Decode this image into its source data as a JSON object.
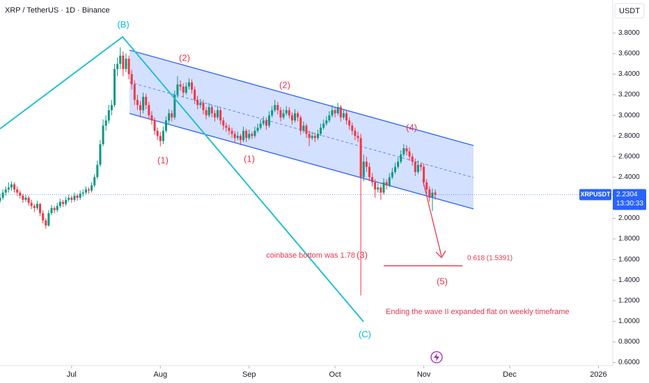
{
  "chart_data": {
    "type": "candlestick",
    "title": "XRP / TetherUS · 1D · Binance",
    "currency": "USDT",
    "symbol": "XRPUSDT",
    "countdown": "13:30:33",
    "up_color": "#089981",
    "down_color": "#f23645",
    "ylim": [
      0.57,
      4.12
    ],
    "yticks": [
      {
        "value": 0.6,
        "label": "0.6000"
      },
      {
        "value": 0.8,
        "label": "0.8000"
      },
      {
        "value": 1.0,
        "label": "1.0000"
      },
      {
        "value": 1.2,
        "label": "1.2000"
      },
      {
        "value": 1.4,
        "label": "1.4000"
      },
      {
        "value": 1.6,
        "label": "1.6000"
      },
      {
        "value": 1.8,
        "label": "1.8000"
      },
      {
        "value": 2.0,
        "label": "2.0000"
      },
      {
        "value": 2.2,
        "label": "2.2000"
      },
      {
        "value": 2.4,
        "label": "2.4000"
      },
      {
        "value": 2.6,
        "label": "2.6000"
      },
      {
        "value": 2.8,
        "label": "2.8000"
      },
      {
        "value": 3.0,
        "label": "3.0000"
      },
      {
        "value": 3.2,
        "label": "3.2000"
      },
      {
        "value": 3.4,
        "label": "3.4000"
      },
      {
        "value": 3.6,
        "label": "3.6000"
      },
      {
        "value": 3.8,
        "label": "3.8000"
      }
    ],
    "xlim": [
      0,
      214
    ],
    "xticks": [
      {
        "value": 25,
        "label": "Jul"
      },
      {
        "value": 56,
        "label": "Aug"
      },
      {
        "value": 87,
        "label": "Sep"
      },
      {
        "value": 117,
        "label": "Oct"
      },
      {
        "value": 148,
        "label": "Nov"
      },
      {
        "value": 178,
        "label": "Dec"
      },
      {
        "value": 209,
        "label": "2026"
      }
    ],
    "ohlc": [
      [
        2.17,
        2.24,
        2.15,
        2.2
      ],
      [
        2.2,
        2.28,
        2.18,
        2.25
      ],
      [
        2.25,
        2.31,
        2.22,
        2.28
      ],
      [
        2.28,
        2.35,
        2.25,
        2.3
      ],
      [
        2.3,
        2.36,
        2.27,
        2.33
      ],
      [
        2.33,
        2.35,
        2.25,
        2.28
      ],
      [
        2.28,
        2.31,
        2.22,
        2.25
      ],
      [
        2.25,
        2.27,
        2.19,
        2.22
      ],
      [
        2.22,
        2.24,
        2.15,
        2.18
      ],
      [
        2.18,
        2.23,
        2.16,
        2.2
      ],
      [
        2.2,
        2.22,
        2.12,
        2.15
      ],
      [
        2.15,
        2.18,
        2.09,
        2.12
      ],
      [
        2.12,
        2.14,
        2.06,
        2.1
      ],
      [
        2.1,
        2.17,
        2.08,
        2.14
      ],
      [
        2.14,
        2.15,
        2.02,
        2.05
      ],
      [
        2.05,
        2.08,
        1.95,
        1.98
      ],
      [
        1.98,
        2.0,
        1.9,
        1.93
      ],
      [
        1.93,
        2.08,
        1.92,
        2.05
      ],
      [
        2.05,
        2.13,
        2.03,
        2.1
      ],
      [
        2.1,
        2.12,
        2.05,
        2.08
      ],
      [
        2.08,
        2.15,
        2.06,
        2.12
      ],
      [
        2.12,
        2.19,
        2.1,
        2.16
      ],
      [
        2.16,
        2.18,
        2.11,
        2.14
      ],
      [
        2.14,
        2.21,
        2.12,
        2.18
      ],
      [
        2.18,
        2.23,
        2.16,
        2.2
      ],
      [
        2.2,
        2.22,
        2.15,
        2.18
      ],
      [
        2.18,
        2.25,
        2.16,
        2.22
      ],
      [
        2.22,
        2.24,
        2.17,
        2.2
      ],
      [
        2.2,
        2.27,
        2.18,
        2.24
      ],
      [
        2.24,
        2.28,
        2.21,
        2.25
      ],
      [
        2.25,
        2.31,
        2.23,
        2.28
      ],
      [
        2.28,
        2.3,
        2.24,
        2.27
      ],
      [
        2.27,
        2.35,
        2.25,
        2.32
      ],
      [
        2.32,
        2.43,
        2.3,
        2.4
      ],
      [
        2.4,
        2.56,
        2.38,
        2.52
      ],
      [
        2.52,
        2.76,
        2.5,
        2.72
      ],
      [
        2.72,
        2.96,
        2.7,
        2.9
      ],
      [
        2.9,
        3.0,
        2.85,
        2.95
      ],
      [
        2.95,
        3.1,
        2.92,
        3.05
      ],
      [
        3.05,
        3.15,
        3.0,
        3.1
      ],
      [
        3.1,
        3.5,
        3.08,
        3.45
      ],
      [
        3.45,
        3.56,
        3.38,
        3.5
      ],
      [
        3.5,
        3.66,
        3.45,
        3.58
      ],
      [
        3.58,
        3.62,
        3.38,
        3.45
      ],
      [
        3.45,
        3.6,
        3.42,
        3.55
      ],
      [
        3.55,
        3.58,
        3.35,
        3.4
      ],
      [
        3.4,
        3.44,
        3.25,
        3.3
      ],
      [
        3.3,
        3.34,
        3.1,
        3.15
      ],
      [
        3.15,
        3.2,
        3.05,
        3.1
      ],
      [
        3.1,
        3.14,
        2.98,
        3.05
      ],
      [
        3.05,
        3.22,
        3.02,
        3.18
      ],
      [
        3.18,
        3.21,
        3.06,
        3.1
      ],
      [
        3.1,
        3.13,
        2.96,
        3.0
      ],
      [
        3.0,
        3.04,
        2.91,
        2.95
      ],
      [
        2.95,
        2.98,
        2.81,
        2.85
      ],
      [
        2.85,
        2.88,
        2.76,
        2.8
      ],
      [
        2.8,
        2.84,
        2.7,
        2.75
      ],
      [
        2.75,
        2.89,
        2.72,
        2.85
      ],
      [
        2.85,
        2.99,
        2.83,
        2.95
      ],
      [
        2.95,
        3.06,
        2.92,
        3.02
      ],
      [
        3.02,
        3.05,
        2.94,
        2.98
      ],
      [
        2.98,
        3.24,
        2.96,
        3.2
      ],
      [
        3.2,
        3.38,
        3.17,
        3.3
      ],
      [
        3.3,
        3.34,
        3.24,
        3.28
      ],
      [
        3.28,
        3.31,
        3.18,
        3.22
      ],
      [
        3.22,
        3.32,
        3.2,
        3.28
      ],
      [
        3.28,
        3.36,
        3.25,
        3.32
      ],
      [
        3.32,
        3.35,
        3.21,
        3.25
      ],
      [
        3.25,
        3.28,
        3.11,
        3.15
      ],
      [
        3.15,
        3.19,
        3.06,
        3.1
      ],
      [
        3.1,
        3.16,
        3.07,
        3.12
      ],
      [
        3.12,
        3.15,
        3.01,
        3.05
      ],
      [
        3.05,
        3.08,
        2.96,
        3.0
      ],
      [
        3.0,
        3.12,
        2.98,
        3.08
      ],
      [
        3.08,
        3.1,
        2.98,
        3.02
      ],
      [
        3.02,
        3.05,
        2.94,
        2.98
      ],
      [
        2.98,
        3.09,
        2.96,
        3.05
      ],
      [
        3.05,
        3.07,
        2.91,
        2.95
      ],
      [
        2.95,
        2.98,
        2.86,
        2.9
      ],
      [
        2.9,
        2.93,
        2.84,
        2.88
      ],
      [
        2.88,
        2.91,
        2.81,
        2.85
      ],
      [
        2.85,
        2.88,
        2.78,
        2.82
      ],
      [
        2.82,
        2.85,
        2.74,
        2.78
      ],
      [
        2.78,
        2.84,
        2.76,
        2.8
      ],
      [
        2.8,
        2.82,
        2.71,
        2.76
      ],
      [
        2.76,
        2.89,
        2.74,
        2.85
      ],
      [
        2.85,
        2.87,
        2.74,
        2.78
      ],
      [
        2.78,
        2.86,
        2.76,
        2.82
      ],
      [
        2.82,
        2.84,
        2.77,
        2.8
      ],
      [
        2.8,
        2.89,
        2.78,
        2.85
      ],
      [
        2.85,
        2.92,
        2.83,
        2.88
      ],
      [
        2.88,
        2.96,
        2.86,
        2.92
      ],
      [
        2.92,
        2.99,
        2.9,
        2.95
      ],
      [
        2.95,
        2.98,
        2.86,
        2.9
      ],
      [
        2.9,
        3.04,
        2.88,
        3.0
      ],
      [
        3.0,
        3.09,
        2.98,
        3.05
      ],
      [
        3.05,
        3.15,
        3.03,
        3.1
      ],
      [
        3.1,
        3.13,
        3.01,
        3.05
      ],
      [
        3.05,
        3.08,
        2.94,
        2.98
      ],
      [
        2.98,
        3.06,
        2.96,
        3.02
      ],
      [
        3.02,
        3.09,
        3.0,
        3.05
      ],
      [
        3.05,
        3.08,
        2.97,
        3.0
      ],
      [
        3.0,
        3.03,
        2.91,
        2.95
      ],
      [
        2.95,
        3.06,
        2.93,
        3.02
      ],
      [
        3.02,
        3.04,
        2.94,
        2.98
      ],
      [
        2.98,
        3.0,
        2.81,
        2.85
      ],
      [
        2.85,
        2.94,
        2.83,
        2.9
      ],
      [
        2.9,
        2.92,
        2.78,
        2.82
      ],
      [
        2.82,
        2.85,
        2.7,
        2.78
      ],
      [
        2.78,
        2.84,
        2.76,
        2.8
      ],
      [
        2.8,
        2.83,
        2.74,
        2.78
      ],
      [
        2.78,
        2.86,
        2.76,
        2.82
      ],
      [
        2.82,
        2.92,
        2.8,
        2.88
      ],
      [
        2.88,
        2.96,
        2.86,
        2.92
      ],
      [
        2.92,
        2.99,
        2.9,
        2.95
      ],
      [
        2.95,
        3.04,
        2.93,
        3.0
      ],
      [
        3.0,
        3.1,
        2.98,
        3.05
      ],
      [
        3.05,
        3.08,
        2.98,
        3.02
      ],
      [
        3.02,
        3.12,
        3.0,
        3.08
      ],
      [
        3.08,
        3.1,
        2.94,
        2.98
      ],
      [
        2.98,
        3.06,
        2.96,
        3.02
      ],
      [
        3.02,
        3.05,
        2.91,
        2.95
      ],
      [
        2.95,
        2.98,
        2.86,
        2.9
      ],
      [
        2.9,
        2.93,
        2.81,
        2.85
      ],
      [
        2.85,
        2.88,
        2.76,
        2.8
      ],
      [
        2.8,
        2.84,
        2.74,
        2.78
      ],
      [
        2.78,
        2.82,
        1.25,
        2.4
      ],
      [
        2.4,
        2.62,
        2.36,
        2.55
      ],
      [
        2.55,
        2.6,
        2.45,
        2.5
      ],
      [
        2.5,
        2.54,
        2.36,
        2.4
      ],
      [
        2.4,
        2.44,
        2.31,
        2.35
      ],
      [
        2.35,
        2.38,
        2.2,
        2.28
      ],
      [
        2.28,
        2.34,
        2.25,
        2.3
      ],
      [
        2.3,
        2.33,
        2.18,
        2.25
      ],
      [
        2.25,
        2.39,
        2.23,
        2.35
      ],
      [
        2.35,
        2.38,
        2.28,
        2.32
      ],
      [
        2.32,
        2.44,
        2.3,
        2.4
      ],
      [
        2.4,
        2.49,
        2.38,
        2.45
      ],
      [
        2.45,
        2.54,
        2.43,
        2.5
      ],
      [
        2.5,
        2.59,
        2.48,
        2.55
      ],
      [
        2.55,
        2.66,
        2.53,
        2.62
      ],
      [
        2.62,
        2.72,
        2.6,
        2.68
      ],
      [
        2.68,
        2.71,
        2.61,
        2.65
      ],
      [
        2.65,
        2.69,
        2.56,
        2.6
      ],
      [
        2.6,
        2.63,
        2.51,
        2.55
      ],
      [
        2.55,
        2.58,
        2.41,
        2.45
      ],
      [
        2.45,
        2.56,
        2.43,
        2.52
      ],
      [
        2.52,
        2.54,
        2.46,
        2.5
      ],
      [
        2.5,
        2.53,
        2.31,
        2.35
      ],
      [
        2.35,
        2.38,
        2.24,
        2.28
      ],
      [
        2.28,
        2.31,
        2.16,
        2.2
      ],
      [
        2.2,
        2.29,
        2.07,
        2.25
      ],
      [
        2.25,
        2.28,
        2.18,
        2.2304
      ]
    ],
    "annotations": [
      "(B)",
      "(C)",
      "(2)",
      "(1)",
      "(1)",
      "(2)",
      "(4)",
      "(3)",
      "(5)",
      "coinbase bottom was 1.78",
      "Ending the wave II expanded flat on weekly timeframe"
    ],
    "fib_level": {
      "label": "0.618 (1.5391)",
      "value": 1.5391
    }
  }
}
